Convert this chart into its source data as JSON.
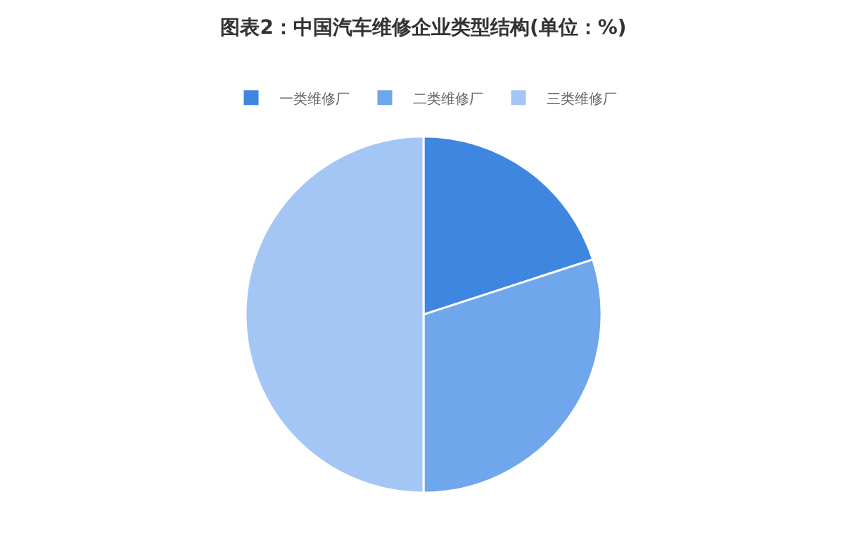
{
  "chart_data": {
    "type": "pie",
    "title": "图表2：中国汽车维修企业类型结构(单位：%)",
    "categories": [
      "一类维修厂",
      "二类维修厂",
      "三类维修厂"
    ],
    "values": [
      20,
      30,
      50
    ],
    "colors": [
      "#3e86e0",
      "#6fa6ec",
      "#a3c6f4"
    ],
    "legend": "top"
  }
}
